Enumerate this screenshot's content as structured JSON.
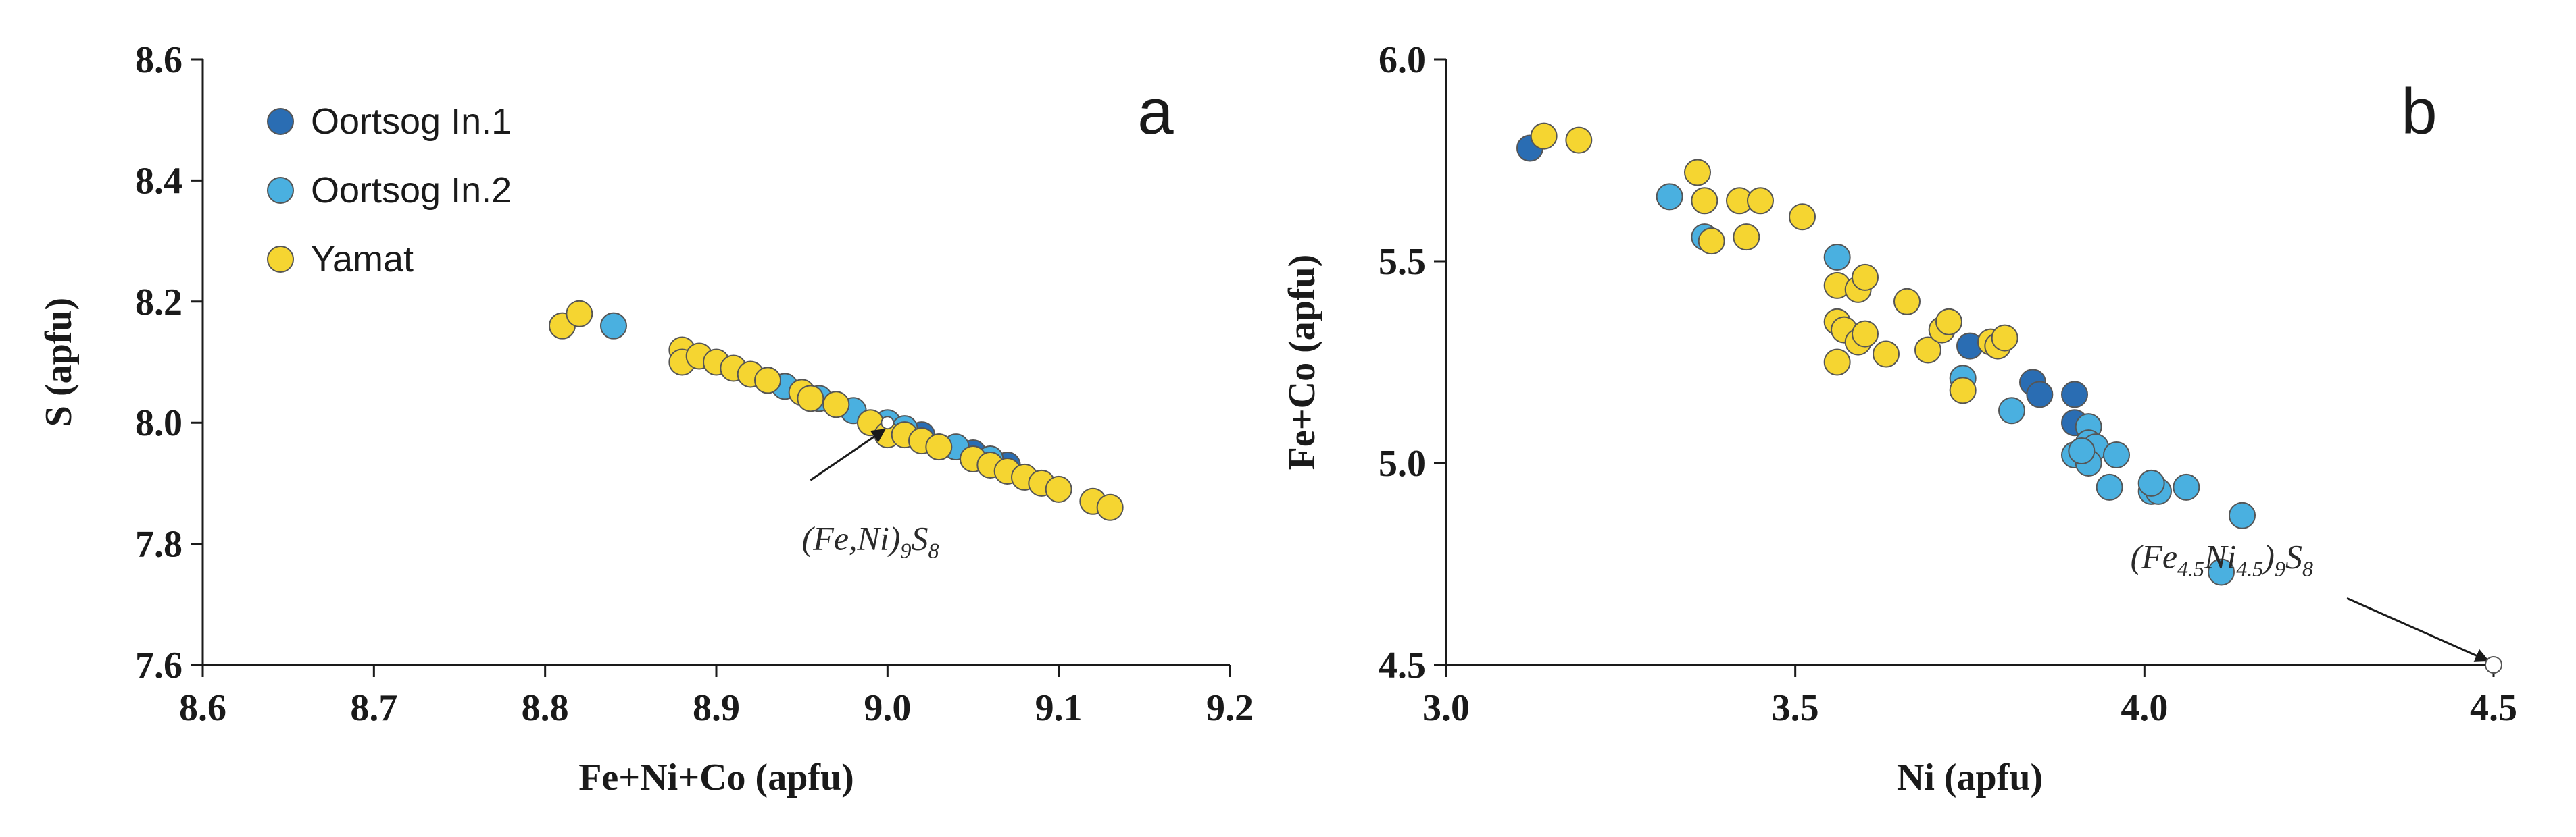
{
  "colors": {
    "oortsog1": "#2a6db3",
    "oortsog2": "#4ab0e0",
    "yamat": "#f5d531",
    "marker_stroke": "#555555",
    "axis": "#1a1a1a",
    "target": "#ffffff"
  },
  "chart_data": [
    {
      "id": "a",
      "type": "scatter",
      "panel_label": "a",
      "xlabel": "Fe+Ni+Co (apfu)",
      "ylabel": "S (apfu)",
      "xlim": [
        8.6,
        9.2
      ],
      "ylim": [
        7.6,
        8.6
      ],
      "x_ticks": [
        8.6,
        8.7,
        8.8,
        8.9,
        9.0,
        9.1,
        9.2
      ],
      "x_tick_labels": [
        "8.6",
        "8.7",
        "8.8",
        "8.9",
        "9.0",
        "9.1",
        "9.2"
      ],
      "y_ticks": [
        7.6,
        7.8,
        8.0,
        8.2,
        8.4,
        8.6
      ],
      "y_tick_labels": [
        "7.6",
        "7.8",
        "8.0",
        "8.2",
        "8.4",
        "8.6"
      ],
      "legend": {
        "position": "top-left",
        "entries": [
          {
            "label": "Oortsog In.1",
            "color_key": "oortsog1"
          },
          {
            "label": "Oortsog In.2",
            "color_key": "oortsog2"
          },
          {
            "label": "Yamat",
            "color_key": "yamat"
          }
        ]
      },
      "annotation": {
        "text_main": "(Fe,Ni)",
        "sub1": "9",
        "text_mid": "S",
        "sub2": "8",
        "point": [
          9.0,
          8.0
        ],
        "text_at": [
          8.95,
          7.79
        ]
      },
      "series": [
        {
          "name": "Oortsog In.1",
          "color_key": "oortsog1",
          "points": [
            [
              9.03,
              7.96
            ],
            [
              9.05,
              7.95
            ],
            [
              9.07,
              7.93
            ],
            [
              9.02,
              7.98
            ]
          ]
        },
        {
          "name": "Oortsog In.2",
          "color_key": "oortsog2",
          "points": [
            [
              8.84,
              8.16
            ],
            [
              8.93,
              8.07
            ],
            [
              8.94,
              8.06
            ],
            [
              8.96,
              8.04
            ],
            [
              8.98,
              8.02
            ],
            [
              9.0,
              8.0
            ],
            [
              9.01,
              7.99
            ],
            [
              9.04,
              7.96
            ],
            [
              9.06,
              7.94
            ]
          ]
        },
        {
          "name": "Yamat",
          "color_key": "yamat",
          "points": [
            [
              8.81,
              8.16
            ],
            [
              8.82,
              8.18
            ],
            [
              8.88,
              8.12
            ],
            [
              8.88,
              8.1
            ],
            [
              8.89,
              8.11
            ],
            [
              8.9,
              8.1
            ],
            [
              8.91,
              8.09
            ],
            [
              8.92,
              8.08
            ],
            [
              8.93,
              8.07
            ],
            [
              8.95,
              8.05
            ],
            [
              8.955,
              8.04
            ],
            [
              8.97,
              8.03
            ],
            [
              8.99,
              8.0
            ],
            [
              9.0,
              7.98
            ],
            [
              9.01,
              7.98
            ],
            [
              9.02,
              7.97
            ],
            [
              9.03,
              7.96
            ],
            [
              9.05,
              7.94
            ],
            [
              9.06,
              7.93
            ],
            [
              9.07,
              7.92
            ],
            [
              9.08,
              7.91
            ],
            [
              9.09,
              7.9
            ],
            [
              9.1,
              7.89
            ],
            [
              9.12,
              7.87
            ],
            [
              9.13,
              7.86
            ]
          ]
        }
      ]
    },
    {
      "id": "b",
      "type": "scatter",
      "panel_label": "b",
      "xlabel": "Ni (apfu)",
      "ylabel": "Fe+Co (apfu)",
      "xlim": [
        3.0,
        4.5
      ],
      "ylim": [
        4.5,
        6.0
      ],
      "x_ticks": [
        3.0,
        3.5,
        4.0,
        4.5
      ],
      "x_tick_labels": [
        "3.0",
        "3.5",
        "4.0",
        "4.5"
      ],
      "y_ticks": [
        4.5,
        5.0,
        5.5,
        6.0
      ],
      "y_tick_labels": [
        "4.5",
        "5.0",
        "5.5",
        "6.0"
      ],
      "annotation": {
        "text_main": "(Fe",
        "sub1": "4.5",
        "text_mid": "Ni",
        "sub2": "4.5",
        "text_end": ")",
        "sub3": "9",
        "text_last": "S",
        "sub4": "8",
        "point": [
          4.5,
          4.5
        ],
        "text_at": [
          3.98,
          4.74
        ]
      },
      "series": [
        {
          "name": "Oortsog In.1",
          "color_key": "oortsog1",
          "points": [
            [
              3.12,
              5.78
            ],
            [
              3.75,
              5.29
            ],
            [
              3.84,
              5.2
            ],
            [
              3.85,
              5.17
            ],
            [
              3.9,
              5.17
            ],
            [
              3.9,
              5.1
            ]
          ]
        },
        {
          "name": "Oortsog In.2",
          "color_key": "oortsog2",
          "points": [
            [
              3.32,
              5.66
            ],
            [
              3.37,
              5.56
            ],
            [
              3.56,
              5.51
            ],
            [
              3.74,
              5.21
            ],
            [
              3.81,
              5.13
            ],
            [
              3.92,
              5.09
            ],
            [
              3.92,
              5.05
            ],
            [
              3.93,
              5.04
            ],
            [
              3.96,
              5.02
            ],
            [
              3.9,
              5.02
            ],
            [
              3.92,
              5.0
            ],
            [
              3.95,
              4.94
            ],
            [
              4.01,
              4.93
            ],
            [
              4.02,
              4.93
            ],
            [
              4.06,
              4.94
            ],
            [
              4.14,
              4.87
            ],
            [
              4.11,
              4.73
            ],
            [
              4.01,
              4.95
            ],
            [
              3.91,
              5.03
            ]
          ]
        },
        {
          "name": "Yamat",
          "color_key": "yamat",
          "points": [
            [
              3.14,
              5.81
            ],
            [
              3.19,
              5.8
            ],
            [
              3.36,
              5.72
            ],
            [
              3.37,
              5.65
            ],
            [
              3.42,
              5.65
            ],
            [
              3.45,
              5.65
            ],
            [
              3.43,
              5.56
            ],
            [
              3.38,
              5.55
            ],
            [
              3.51,
              5.61
            ],
            [
              3.56,
              5.44
            ],
            [
              3.59,
              5.43
            ],
            [
              3.6,
              5.46
            ],
            [
              3.66,
              5.4
            ],
            [
              3.56,
              5.35
            ],
            [
              3.57,
              5.33
            ],
            [
              3.59,
              5.3
            ],
            [
              3.6,
              5.32
            ],
            [
              3.63,
              5.27
            ],
            [
              3.56,
              5.25
            ],
            [
              3.69,
              5.28
            ],
            [
              3.71,
              5.33
            ],
            [
              3.72,
              5.35
            ],
            [
              3.74,
              5.18
            ],
            [
              3.78,
              5.3
            ],
            [
              3.79,
              5.29
            ],
            [
              3.8,
              5.31
            ]
          ]
        }
      ]
    }
  ]
}
